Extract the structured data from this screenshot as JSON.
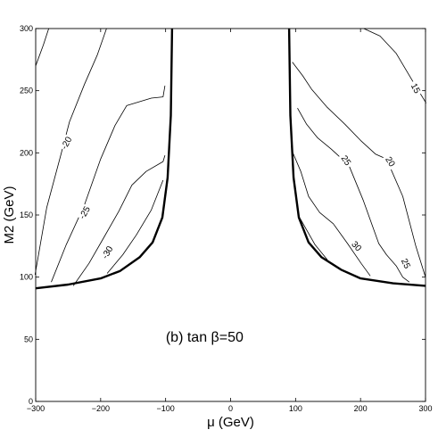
{
  "chart_data": {
    "type": "line",
    "title": "",
    "xlabel": "μ (GeV)",
    "ylabel": "M2 (GeV)",
    "xlim": [
      -300,
      300
    ],
    "ylim": [
      0,
      300
    ],
    "xticks": [
      -300,
      -200,
      -100,
      0,
      100,
      200,
      300
    ],
    "yticks": [
      0,
      50,
      100,
      150,
      200,
      250,
      300
    ],
    "xtick_labels": [
      "−300",
      "−200",
      "−100",
      "0",
      "100",
      "200",
      "300"
    ],
    "ytick_labels": [
      "0",
      "50",
      "100",
      "150",
      "200",
      "250",
      "300"
    ],
    "grid": false,
    "annotation": {
      "text": "(b) tan β=50",
      "x": -40,
      "y": 48
    },
    "boundaries": [
      {
        "name": "",
        "points": [
          [
            -300,
            91
          ],
          [
            -250,
            94
          ],
          [
            -200,
            99
          ],
          [
            -170,
            105
          ],
          [
            -140,
            116
          ],
          [
            -120,
            128
          ],
          [
            -105,
            148
          ],
          [
            -97,
            180
          ],
          [
            -92,
            230
          ],
          [
            -90,
            300
          ]
        ]
      },
      {
        "name": "",
        "points": [
          [
            90,
            300
          ],
          [
            92,
            230
          ],
          [
            97,
            180
          ],
          [
            105,
            148
          ],
          [
            120,
            128
          ],
          [
            140,
            116
          ],
          [
            170,
            106
          ],
          [
            200,
            99
          ],
          [
            250,
            95
          ],
          [
            300,
            93
          ]
        ]
      }
    ],
    "contours": [
      {
        "label": "-20",
        "label_pos": [
          -253,
          208
        ],
        "label_angle": -62,
        "points": [
          [
            -301,
            102
          ],
          [
            -283,
            156
          ],
          [
            -262,
            197
          ],
          [
            -248,
            225
          ],
          [
            -225,
            255
          ],
          [
            -205,
            279
          ],
          [
            -191,
            300
          ]
        ]
      },
      {
        "label": "-25",
        "label_pos": [
          -225,
          152
        ],
        "label_angle": -60,
        "points": [
          [
            -276,
            96
          ],
          [
            -253,
            126
          ],
          [
            -225,
            158
          ],
          [
            -200,
            195
          ],
          [
            -178,
            222
          ],
          [
            -160,
            238
          ],
          [
            -122,
            244
          ],
          [
            -104,
            245
          ],
          [
            -101,
            254
          ]
        ]
      },
      {
        "label": "-30",
        "label_pos": [
          -190,
          120
        ],
        "label_angle": -60,
        "points": [
          [
            -242,
            93
          ],
          [
            -218,
            111
          ],
          [
            -196,
            131
          ],
          [
            -172,
            153
          ],
          [
            -152,
            174
          ],
          [
            -130,
            185
          ],
          [
            -104,
            193
          ],
          [
            -101,
            198
          ]
        ]
      },
      {
        "label": "",
        "points": [
          [
            -190,
            103
          ],
          [
            -166,
            118
          ],
          [
            -145,
            134
          ],
          [
            -122,
            154
          ],
          [
            -110,
            170
          ],
          [
            -104,
            178
          ]
        ]
      },
      {
        "label": "",
        "points": [
          [
            -300,
            270
          ],
          [
            -288,
            287
          ],
          [
            -280,
            300
          ]
        ]
      },
      {
        "label": "15",
        "label_pos": [
          285,
          252
        ],
        "label_angle": 62,
        "points": [
          [
            205,
            300
          ],
          [
            230,
            294
          ],
          [
            255,
            280
          ],
          [
            281,
            257
          ],
          [
            301,
            240
          ]
        ]
      },
      {
        "label": "20",
        "label_pos": [
          246,
          193
        ],
        "label_angle": 58,
        "points": [
          [
            95,
            273
          ],
          [
            111,
            262
          ],
          [
            125,
            251
          ],
          [
            148,
            237
          ],
          [
            176,
            223
          ],
          [
            200,
            210
          ],
          [
            223,
            199
          ],
          [
            240,
            195
          ],
          [
            265,
            165
          ],
          [
            285,
            125
          ],
          [
            300,
            100
          ]
        ]
      },
      {
        "label": "25",
        "label_pos": [
          178,
          194
        ],
        "label_angle": 55,
        "points": [
          [
            103,
            236
          ],
          [
            117,
            223
          ],
          [
            134,
            212
          ],
          [
            155,
            203
          ],
          [
            182,
            190
          ],
          [
            204,
            162
          ],
          [
            228,
            127
          ],
          [
            240,
            118
          ],
          [
            255,
            109
          ],
          [
            265,
            100
          ],
          [
            275,
            96
          ]
        ]
      },
      {
        "label": "30",
        "label_pos": [
          194,
          125
        ],
        "label_angle": 48,
        "points": [
          [
            95,
            201
          ],
          [
            108,
            185
          ],
          [
            120,
            165
          ],
          [
            137,
            152
          ],
          [
            158,
            143
          ],
          [
            180,
            127
          ],
          [
            201,
            111
          ],
          [
            215,
            101
          ]
        ]
      },
      {
        "label": "25",
        "label_pos": [
          270,
          111
        ],
        "label_angle": 65,
        "points": [
          [
            104,
            150
          ],
          [
            117,
            138
          ],
          [
            130,
            126
          ],
          [
            149,
            114
          ]
        ]
      }
    ]
  }
}
